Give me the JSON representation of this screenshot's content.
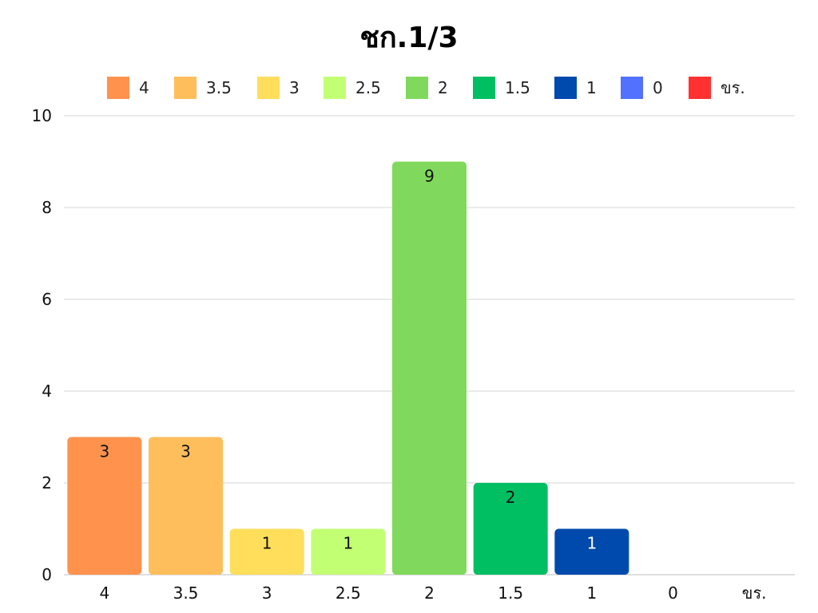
{
  "chart_data": {
    "type": "bar",
    "title": "ชก.1/3",
    "xlabel": "",
    "ylabel": "",
    "categories": [
      "4",
      "3.5",
      "3",
      "2.5",
      "2",
      "1.5",
      "1",
      "0",
      "ขร."
    ],
    "values": [
      3,
      3,
      1,
      1,
      9,
      2,
      1,
      0,
      0
    ],
    "colors": [
      "#ff934d",
      "#ffbe5c",
      "#ffde5c",
      "#c2ff73",
      "#80d95c",
      "#00bf63",
      "#004aad",
      "#5271ff",
      "#ff3131"
    ],
    "label_colors": [
      "#111111",
      "#111111",
      "#111111",
      "#111111",
      "#111111",
      "#111111",
      "#ffffff",
      "#111111",
      "#111111"
    ],
    "yticks": [
      "0",
      "2",
      "4",
      "6",
      "8",
      "10"
    ],
    "ylim": [
      0,
      10
    ],
    "grid": true,
    "legend_position": "top"
  }
}
